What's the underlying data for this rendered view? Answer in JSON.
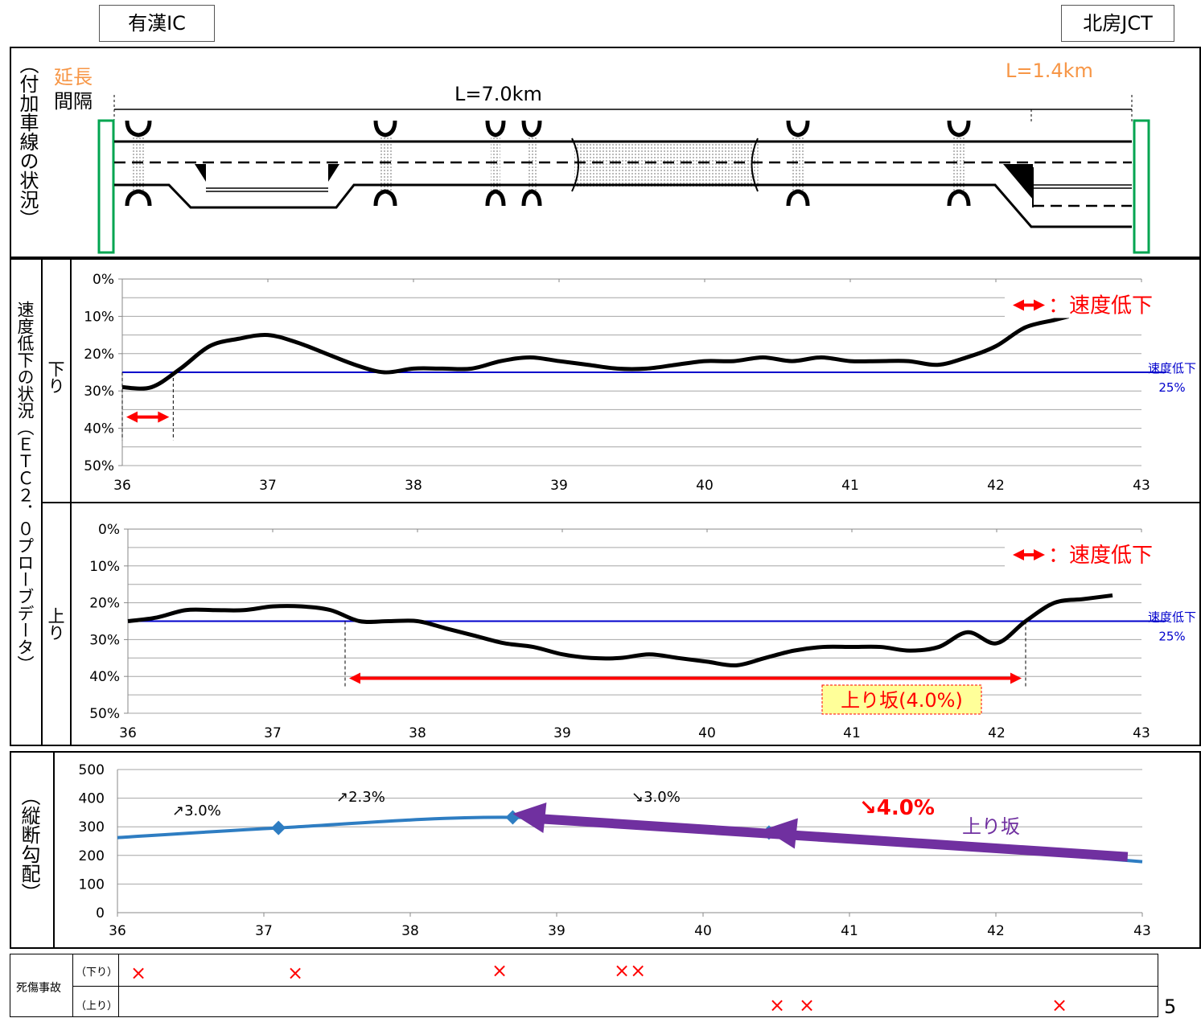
{
  "header": {
    "left_ic": "有漢IC",
    "right_ic": "北房JCT",
    "page_number": "5"
  },
  "lane_panel": {
    "side_title": "（付加車線の状況）",
    "length_label": "延長",
    "interval_label": "間隔",
    "main_length": "L=7.0km",
    "right_length": "L=1.4km"
  },
  "speed_panel": {
    "side_title": "速度低下の状況（ＥＴＣ２．０プローブデータ）",
    "down_label": "下り",
    "up_label": "上り",
    "legend_text": "：速度低下",
    "threshold_label_line1": "速度低下",
    "threshold_label_line2": "25%",
    "upslope_label": "上り坂(4.0%)"
  },
  "gradient_panel": {
    "side_title": "（縦断勾配）",
    "grade_labels": [
      "↗3.0%",
      "↗2.3%",
      "↘3.0%"
    ],
    "highlight_grade": "↘4.0%",
    "upslope_label": "上り坂"
  },
  "accident_table": {
    "row_header": "死傷事故",
    "down_label": "（下り）",
    "up_label": "（上り）",
    "down_markers": [
      "×",
      "×",
      "×",
      "××"
    ],
    "up_markers": [
      "×",
      "×",
      "×"
    ]
  },
  "colors": {
    "threshold": "#0000cc",
    "red": "#ff0000",
    "gradient_line": "#2e7dc2",
    "purple": "#7030a0",
    "orange": "#f79646",
    "green": "#00a550"
  },
  "chart_data": [
    {
      "type": "line",
      "title": "",
      "series": [
        {
          "name": "下り",
          "x": [
            36.0,
            36.2,
            36.4,
            36.6,
            36.8,
            37.0,
            37.2,
            37.4,
            37.6,
            37.8,
            38.0,
            38.2,
            38.4,
            38.6,
            38.8,
            39.0,
            39.2,
            39.4,
            39.6,
            39.8,
            40.0,
            40.2,
            40.4,
            40.6,
            40.8,
            41.0,
            41.2,
            41.4,
            41.6,
            41.8,
            42.0,
            42.2,
            42.4,
            42.5
          ],
          "y": [
            29,
            29,
            24,
            18,
            16,
            15,
            17,
            20,
            23,
            25,
            24,
            24,
            24,
            22,
            21,
            22,
            23,
            24,
            24,
            23,
            22,
            22,
            21,
            22,
            21,
            22,
            22,
            22,
            23,
            21,
            18,
            13,
            11,
            10
          ]
        }
      ],
      "threshold": 25,
      "xlim": [
        36,
        43
      ],
      "ylim": [
        0,
        50
      ],
      "x_ticks": [
        "36",
        "37",
        "38",
        "39",
        "40",
        "41",
        "42",
        "43"
      ],
      "y_ticks": [
        "0%",
        "10%",
        "20%",
        "30%",
        "40%",
        "50%"
      ],
      "speed_drop_ranges": [
        [
          36.0,
          36.35
        ]
      ]
    },
    {
      "type": "line",
      "title": "",
      "series": [
        {
          "name": "上り",
          "x": [
            36.0,
            36.2,
            36.4,
            36.6,
            36.8,
            37.0,
            37.2,
            37.4,
            37.6,
            37.8,
            38.0,
            38.2,
            38.4,
            38.6,
            38.8,
            39.0,
            39.2,
            39.4,
            39.6,
            39.8,
            40.0,
            40.2,
            40.4,
            40.6,
            40.8,
            41.0,
            41.2,
            41.4,
            41.6,
            41.8,
            42.0,
            42.2,
            42.4,
            42.6,
            42.8
          ],
          "y": [
            25,
            24,
            22,
            22,
            22,
            21,
            21,
            22,
            25,
            25,
            25,
            27,
            29,
            31,
            32,
            34,
            35,
            35,
            34,
            35,
            36,
            37,
            35,
            33,
            32,
            32,
            32,
            33,
            32,
            28,
            31,
            25,
            20,
            19,
            18
          ]
        }
      ],
      "threshold": 25,
      "xlim": [
        36,
        43
      ],
      "ylim": [
        0,
        50
      ],
      "x_ticks": [
        "36",
        "37",
        "38",
        "39",
        "40",
        "41",
        "42",
        "43"
      ],
      "y_ticks": [
        "0%",
        "10%",
        "20%",
        "30%",
        "40%",
        "50%"
      ],
      "speed_drop_ranges": [
        [
          37.5,
          42.2
        ]
      ]
    },
    {
      "type": "line",
      "title": "",
      "series": [
        {
          "name": "縦断勾配",
          "x": [
            36.0,
            37.1,
            38.7,
            40.45,
            43.0
          ],
          "y": [
            262,
            296,
            333,
            280,
            178
          ]
        }
      ],
      "markers_x": [
        37.1,
        38.7,
        40.45
      ],
      "upslope_arrow": {
        "from": [
          42.9,
          195
        ],
        "to": [
          38.7,
          340
        ]
      },
      "xlim": [
        36,
        43
      ],
      "ylim": [
        0,
        500
      ],
      "x_ticks": [
        "36",
        "37",
        "38",
        "39",
        "40",
        "41",
        "42",
        "43"
      ],
      "y_ticks": [
        "0",
        "100",
        "200",
        "300",
        "400",
        "500"
      ]
    }
  ]
}
